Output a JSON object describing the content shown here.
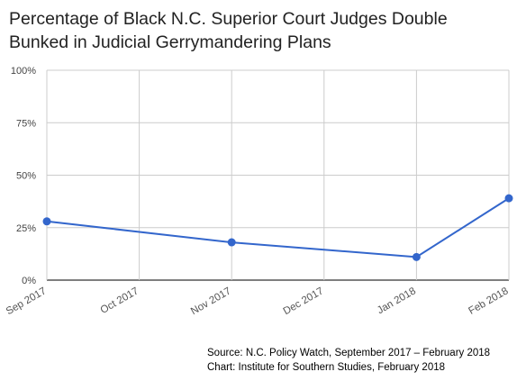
{
  "chart_data": {
    "type": "line",
    "title": [
      "Percentage of Black N.C. Superior Court Judges Double",
      "Bunked in Judicial Gerrymandering Plans"
    ],
    "x_categories": [
      "Sep 2017",
      "Oct 2017",
      "Nov 2017",
      "Dec 2017",
      "Jan 2018",
      "Feb 2018"
    ],
    "y_ticks": [
      "0%",
      "25%",
      "50%",
      "75%",
      "100%"
    ],
    "ylim": [
      0,
      100
    ],
    "grid": true,
    "series": [
      {
        "color": "#3366cc",
        "points": [
          {
            "x": "Sep 2017",
            "y": 28
          },
          {
            "x": "Nov 2017",
            "y": 18
          },
          {
            "x": "Jan 2018",
            "y": 11
          },
          {
            "x": "Feb 2018",
            "y": 39
          }
        ]
      }
    ]
  },
  "footer": {
    "source": "Source: N.C. Policy Watch, September 2017 – February 2018",
    "credit": "Chart: Institute for Southern Studies, February 2018"
  }
}
